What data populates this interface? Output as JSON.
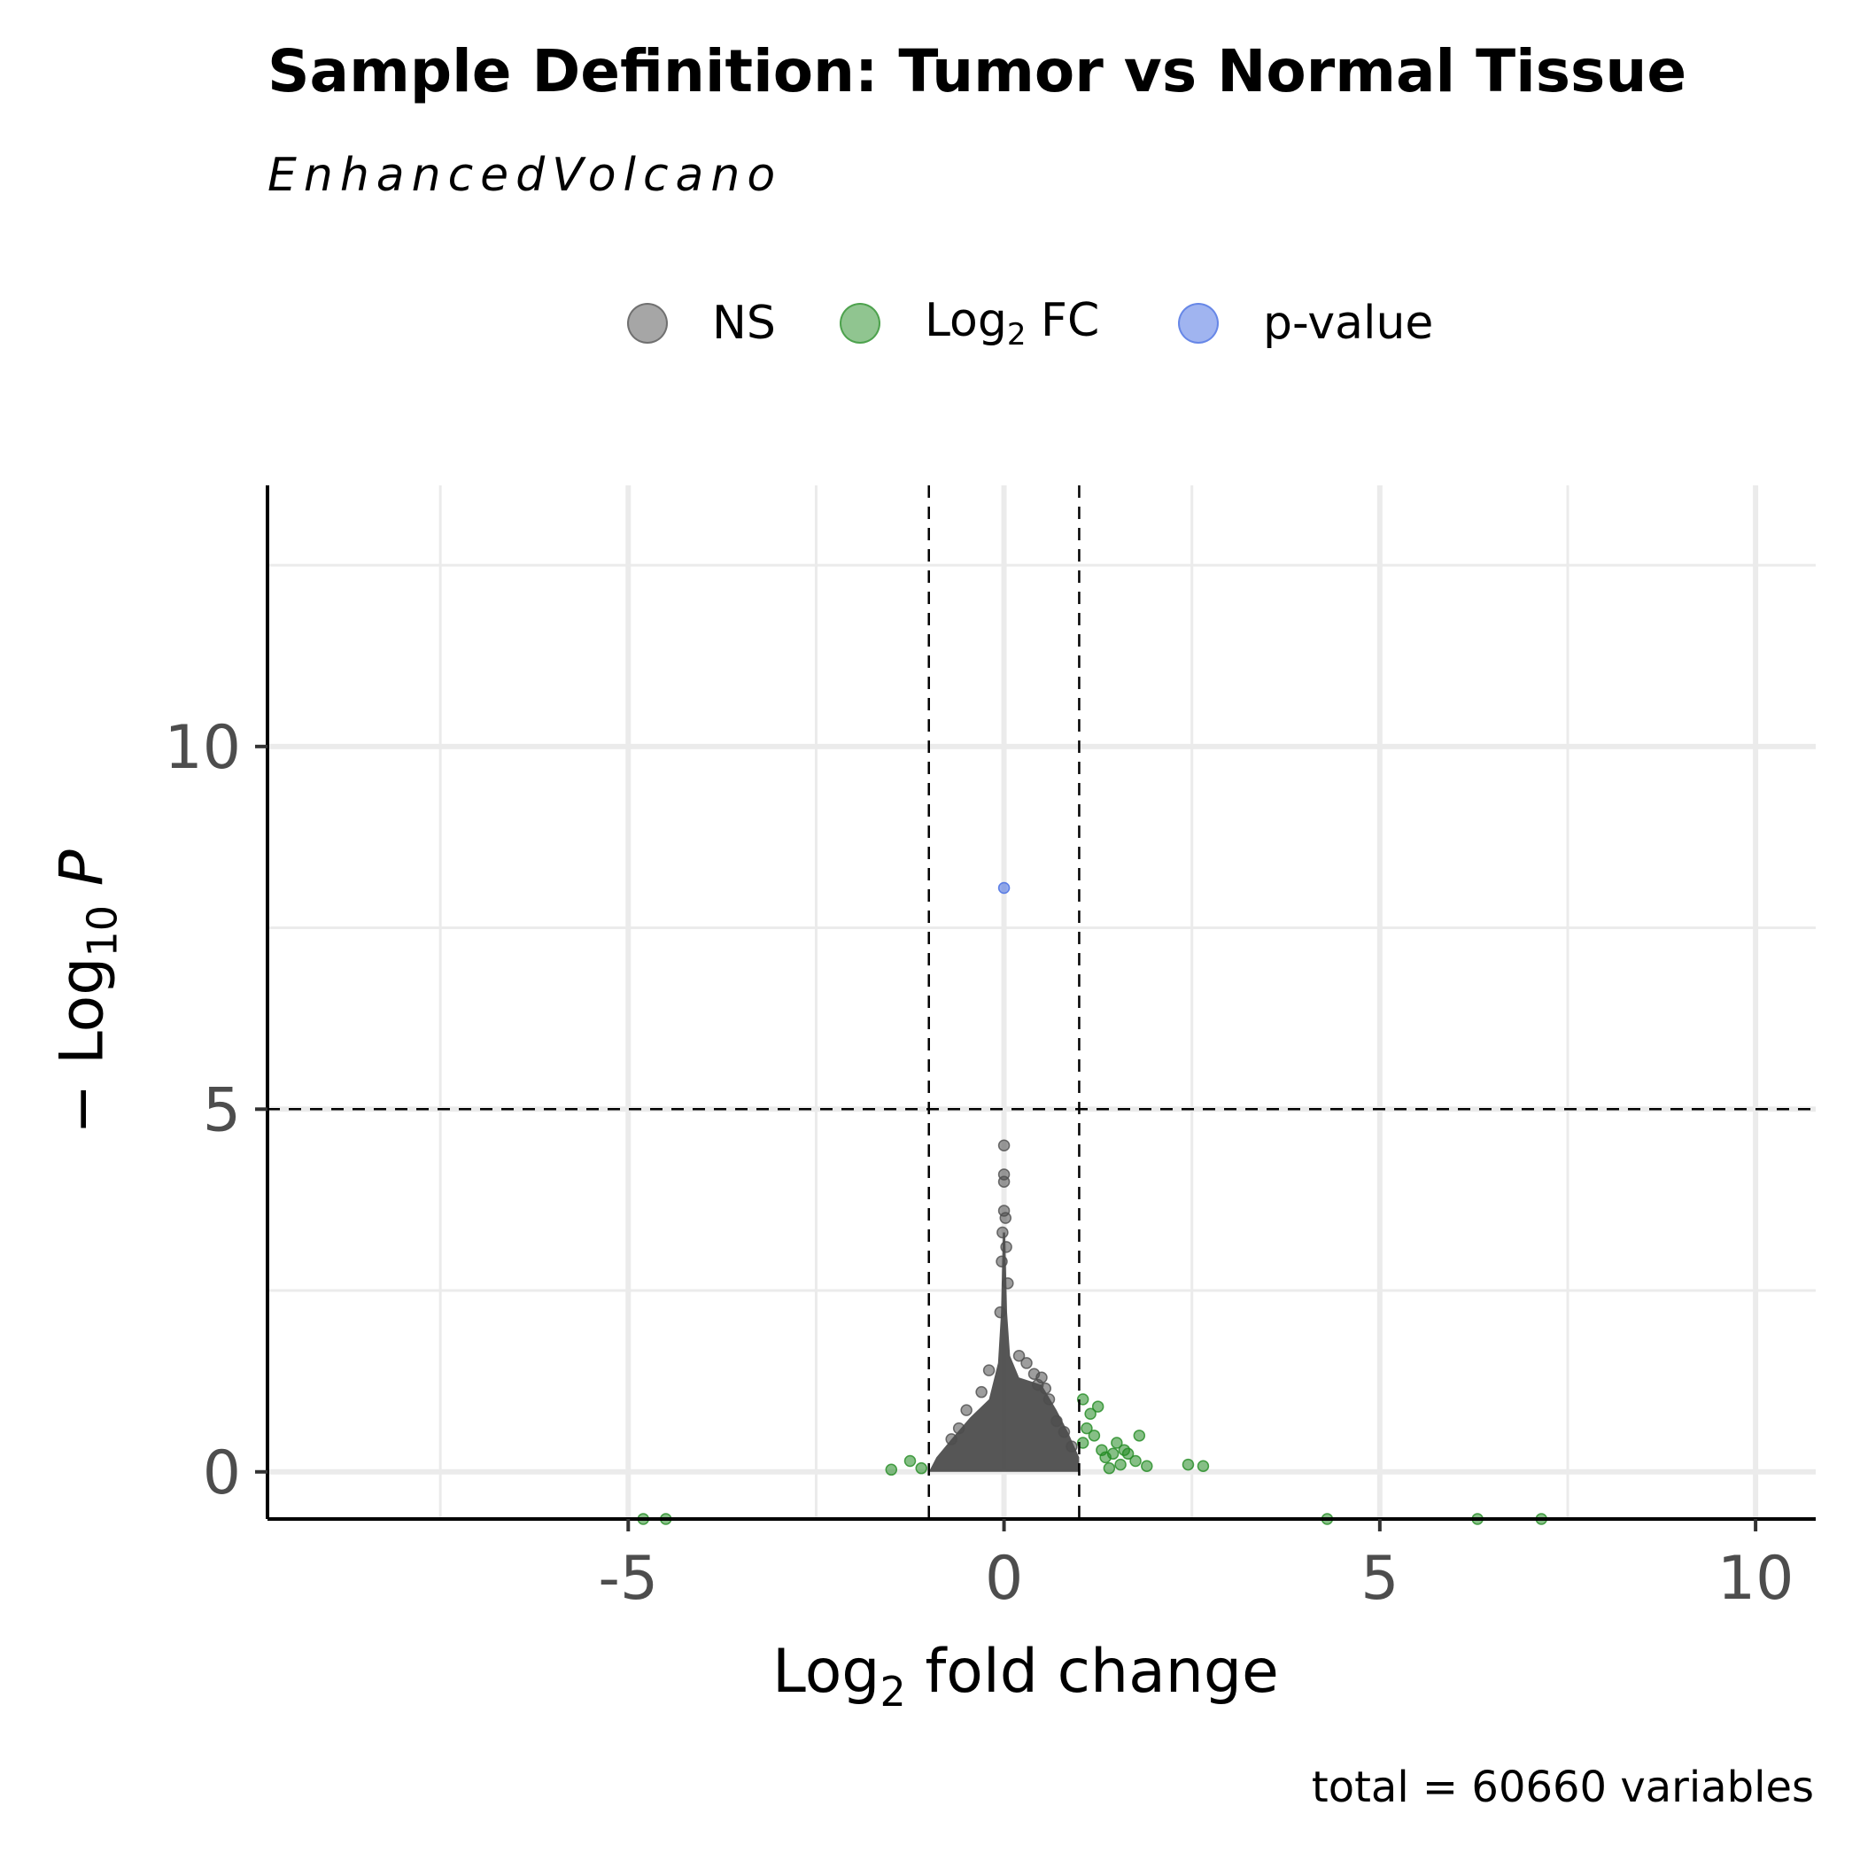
{
  "title": "Sample Definition: Tumor vs Normal Tissue",
  "subtitle": "EnhancedVolcano",
  "caption": "total = 60660 variables",
  "legend": [
    {
      "label": "NS",
      "sub": "",
      "suffix": "",
      "color": "#4d4d4d"
    },
    {
      "label": "Log",
      "sub": "2",
      "suffix": " FC",
      "color": "#228b22"
    },
    {
      "label": "p-value",
      "sub": "",
      "suffix": "",
      "color": "#4169e1"
    }
  ],
  "axes": {
    "x_title": {
      "main": "Log",
      "sub": "2",
      "rest": " fold change"
    },
    "y_title": {
      "prefix": "− Log",
      "sub": "10",
      "rest": " P"
    }
  },
  "chart_data": {
    "type": "scatter",
    "xlim": [
      -9.8,
      10.8
    ],
    "ylim": [
      -0.65,
      13.6
    ],
    "x_ticks": [
      -5,
      0,
      5,
      10
    ],
    "x_tick_labels": [
      "-5",
      "0",
      "5",
      "10"
    ],
    "y_ticks": [
      0,
      5,
      10
    ],
    "y_tick_labels": [
      "0",
      "5",
      "10"
    ],
    "x_minor_grid": [
      -7.5,
      -2.5,
      2.5,
      7.5
    ],
    "y_minor_grid": [
      2.5,
      7.5,
      12.5
    ],
    "grid": true,
    "fc_cutoff": 1,
    "p_cutoff_neglog10": 5,
    "legend_position": "top",
    "colors": {
      "ns": "#4d4d4d",
      "fc": "#228b22",
      "p": "#4169e1",
      "grid": "#ebebeb"
    },
    "series": [
      {
        "name": "NS",
        "color": "#4d4d4d",
        "x": [
          0,
          0,
          0,
          0,
          0.02,
          -0.02,
          0.03,
          -0.03,
          0.05,
          -0.05,
          0.4,
          0.5,
          -0.5,
          0.2,
          -0.2,
          0.6,
          -0.6,
          0.7,
          -0.7,
          0.8,
          0.9,
          0.45,
          0.3,
          -0.3,
          0.55
        ],
        "y": [
          4.5,
          4.1,
          4.0,
          3.6,
          3.5,
          3.3,
          3.1,
          2.9,
          2.6,
          2.2,
          1.35,
          1.3,
          0.85,
          1.6,
          1.4,
          1.0,
          0.6,
          0.7,
          0.45,
          0.55,
          0.35,
          1.2,
          1.5,
          1.1,
          1.15
        ]
      },
      {
        "name": "Log2 FC",
        "color": "#228b22",
        "x": [
          -4.8,
          -4.5,
          4.3,
          6.3,
          7.15,
          2.45,
          2.65,
          -1.5,
          -1.25,
          -1.1,
          1.05,
          1.1,
          1.15,
          1.2,
          1.3,
          1.45,
          1.6,
          1.75,
          1.8,
          1.9,
          1.25,
          1.35,
          1.5,
          1.65,
          1.05,
          1.4,
          1.55
        ],
        "y": [
          -0.65,
          -0.65,
          -0.65,
          -0.65,
          -0.65,
          0.1,
          0.08,
          0.03,
          0.15,
          0.05,
          1.0,
          0.6,
          0.8,
          0.5,
          0.3,
          0.25,
          0.3,
          0.15,
          0.5,
          0.08,
          0.9,
          0.2,
          0.4,
          0.25,
          0.4,
          0.05,
          0.1
        ]
      },
      {
        "name": "p-value",
        "color": "#4169e1",
        "x": [
          0
        ],
        "y": [
          8.05
        ]
      }
    ],
    "ns_cloud": {
      "peak_y": 3.3,
      "base_half_width": 1.0,
      "shoulder_y": 1.3
    }
  }
}
